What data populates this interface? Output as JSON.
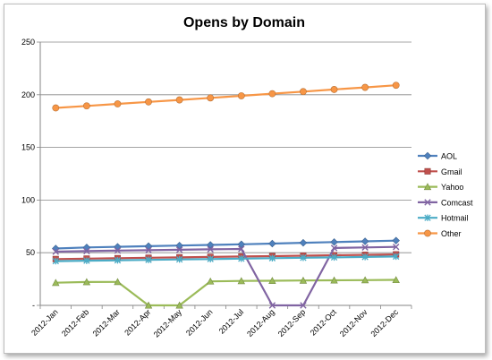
{
  "chart_data": {
    "type": "line",
    "title": "Opens by Domain",
    "xlabel": "",
    "ylabel": "",
    "ylim": [
      0,
      250
    ],
    "yticks": [
      0,
      50,
      100,
      150,
      200,
      250
    ],
    "ytick_labels": [
      "-",
      "50",
      "100",
      "150",
      "200",
      "250"
    ],
    "grid": true,
    "legend_position": "right",
    "categories": [
      "2012-Jan",
      "2012-Feb",
      "2012-Mar",
      "2012-Apr",
      "2012-May",
      "2012-Jun",
      "2012-Jul",
      "2012-Aug",
      "2012-Sep",
      "2012-Oct",
      "2012-Nov",
      "2012-Dec"
    ],
    "series": [
      {
        "name": "AOL",
        "color": "#4f81bd",
        "marker": "diamond",
        "values": [
          54,
          55,
          55.6,
          56.2,
          56.8,
          57.4,
          58,
          58.7,
          59.4,
          60.1,
          60.8,
          61.5
        ]
      },
      {
        "name": "Gmail",
        "color": "#c0504d",
        "marker": "square",
        "values": [
          44,
          44.4,
          44.8,
          45.2,
          45.6,
          46,
          46.4,
          46.8,
          47.2,
          47.6,
          48,
          48.4
        ]
      },
      {
        "name": "Yahoo",
        "color": "#9bbb59",
        "marker": "triangle",
        "values": [
          21.5,
          22.2,
          22.3,
          0,
          0,
          22.8,
          23.2,
          23.4,
          23.6,
          23.8,
          24,
          24.2
        ]
      },
      {
        "name": "Comcast",
        "color": "#8064a2",
        "marker": "x",
        "values": [
          51,
          51.5,
          52,
          52.4,
          52.8,
          53.2,
          53.6,
          0,
          0,
          54.5,
          55,
          55.5
        ]
      },
      {
        "name": "Hotmail",
        "color": "#4bacc6",
        "marker": "star",
        "values": [
          42,
          42.4,
          42.8,
          43.2,
          43.6,
          44,
          44.4,
          44.8,
          45.2,
          45.6,
          46,
          46.4
        ]
      },
      {
        "name": "Other",
        "color": "#f79646",
        "marker": "circle",
        "values": [
          187.5,
          189.4,
          191.3,
          193.2,
          195.1,
          197,
          199,
          201,
          203,
          205,
          207,
          209
        ]
      }
    ]
  }
}
